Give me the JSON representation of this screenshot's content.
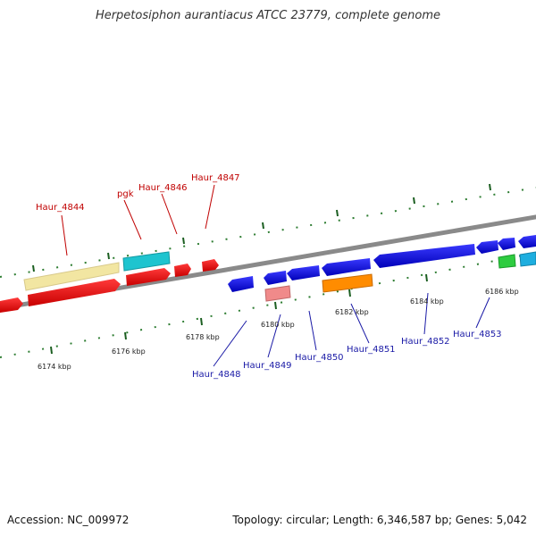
{
  "title": "Herpetosiphon aurantiacus ATCC 23779, complete genome",
  "footer": {
    "accession": "Accession: NC_009972",
    "topology": "Topology: circular; Length: 6,346,587 bp; Genes: 5,042"
  },
  "colors": {
    "top_label": "#c00000",
    "bottom_label": "#1a1aa6",
    "tick": "#2e7d32",
    "backbone": "#8a8a8a"
  },
  "top_labels": [
    {
      "id": "haur4844",
      "text": "Haur_4844"
    },
    {
      "id": "pgk",
      "text": "pgk"
    },
    {
      "id": "haur4846",
      "text": "Haur_4846"
    },
    {
      "id": "haur4847",
      "text": "Haur_4847"
    }
  ],
  "bottom_labels": [
    {
      "id": "haur4848",
      "text": "Haur_4848"
    },
    {
      "id": "haur4849",
      "text": "Haur_4849"
    },
    {
      "id": "haur4850",
      "text": "Haur_4850"
    },
    {
      "id": "haur4851",
      "text": "Haur_4851"
    },
    {
      "id": "haur4852",
      "text": "Haur_4852"
    },
    {
      "id": "haur4853",
      "text": "Haur_4853"
    }
  ],
  "kbp_labels": [
    {
      "id": "k6174",
      "text": "6174 kbp"
    },
    {
      "id": "k6176",
      "text": "6176 kbp"
    },
    {
      "id": "k6178",
      "text": "6178 kbp"
    },
    {
      "id": "k6180",
      "text": "6180 kbp"
    },
    {
      "id": "k6182",
      "text": "6182 kbp"
    },
    {
      "id": "k6184",
      "text": "6184 kbp"
    },
    {
      "id": "k6186",
      "text": "6186 kbp"
    }
  ]
}
